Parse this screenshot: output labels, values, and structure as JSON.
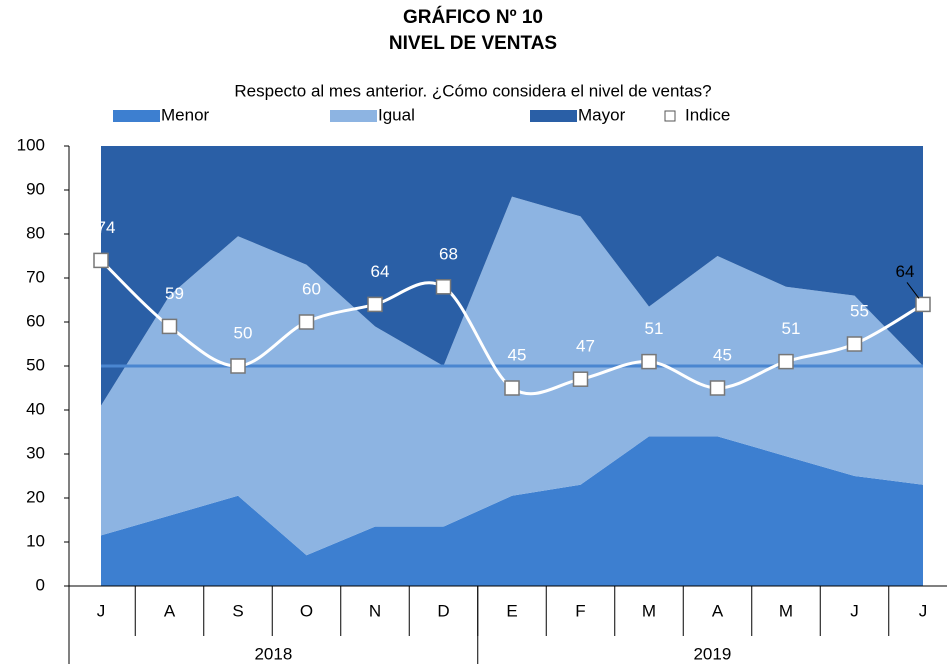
{
  "chart_data": {
    "type": "area",
    "title": "GRÁFICO Nº 10",
    "subtitle": "NIVEL DE VENTAS",
    "note": "Respecto al mes anterior. ¿Cómo considera el nivel de ventas?",
    "categories": [
      "J",
      "A",
      "S",
      "O",
      "N",
      "D",
      "E",
      "F",
      "M",
      "A",
      "M",
      "J",
      "J"
    ],
    "year_groups": [
      {
        "label": "2018",
        "count": 6
      },
      {
        "label": "2019",
        "count": 7
      }
    ],
    "stacked": true,
    "series": [
      {
        "name": "Menor",
        "color": "#3d7fd0",
        "values": [
          11.5,
          16,
          20.5,
          7,
          13.5,
          13.5,
          20.5,
          23,
          34,
          34,
          29.5,
          25,
          23
        ]
      },
      {
        "name": "Igual",
        "color": "#8db4e2",
        "values": [
          29.5,
          50,
          59,
          66,
          45.5,
          36.5,
          68,
          61,
          29.5,
          41,
          38.5,
          41,
          27
        ]
      },
      {
        "name": "Mayor",
        "color": "#2a5fa6",
        "values": [
          59,
          34,
          20.5,
          27,
          41,
          50,
          11.5,
          16,
          36.5,
          25,
          32,
          34,
          50
        ]
      },
      {
        "name": "Indice",
        "type": "line",
        "color": "#ffffff",
        "values": [
          74,
          59,
          50,
          60,
          64,
          68,
          45,
          47,
          51,
          45,
          51,
          55,
          64
        ]
      }
    ],
    "reference_line": {
      "value": 50,
      "color": "#4a86d0"
    },
    "ylim": [
      0,
      100
    ],
    "yticks": [
      0,
      10,
      20,
      30,
      40,
      50,
      60,
      70,
      80,
      90,
      100
    ],
    "grid": false
  }
}
